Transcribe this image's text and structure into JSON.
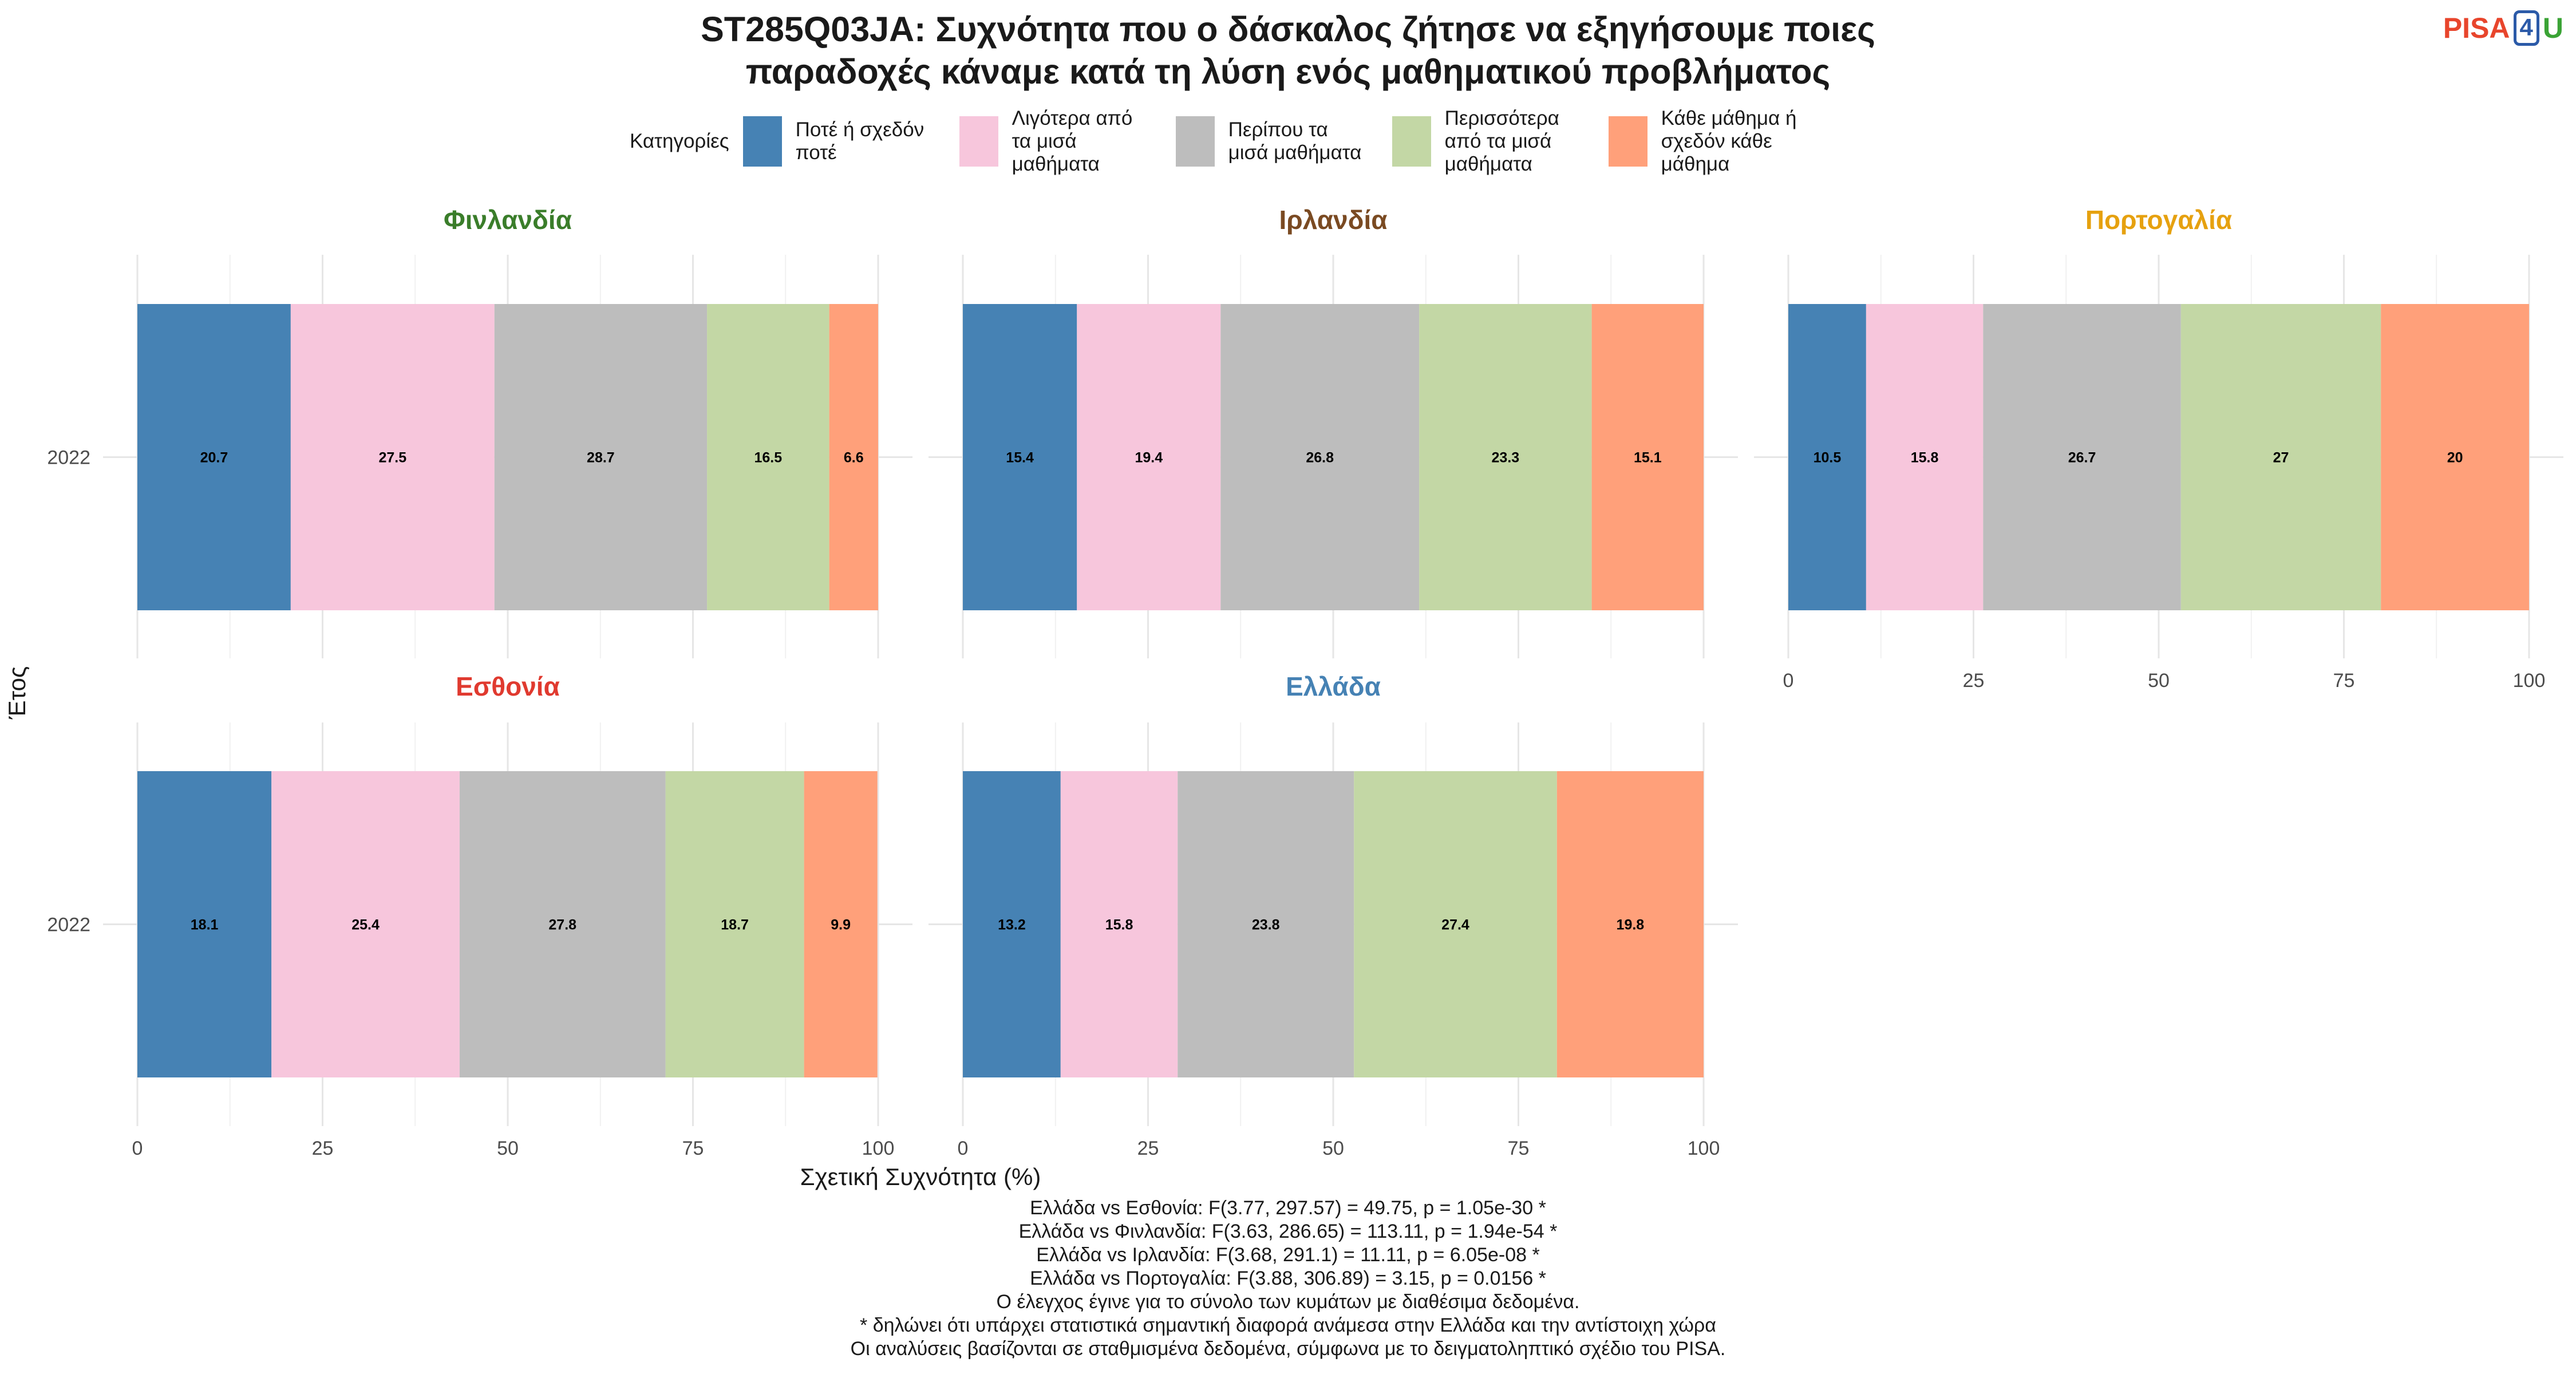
{
  "title_lines": [
    "ST285Q03JA: Συχνότητα που ο δάσκαλος ζήτησε να εξηγήσουμε ποιες",
    "παραδοχές κάναμε κατά τη λύση ενός μαθηματικού προβλήματος"
  ],
  "logo": {
    "part1": "PISA",
    "part2": "4",
    "part3": "U"
  },
  "legend": {
    "title": "Κατηγορίες",
    "items": [
      {
        "label": "Ποτέ ή σχεδόν ποτέ",
        "color": "#4682b4"
      },
      {
        "label": "Λιγότερα από τα μισά μαθήματα",
        "color": "#f7c6dc"
      },
      {
        "label": "Περίπου τα μισά μαθήματα",
        "color": "#bdbdbd"
      },
      {
        "label": "Περισσότερα από τα μισά μαθήματα",
        "color": "#c3d7a5"
      },
      {
        "label": "Κάθε μάθημα ή σχεδόν κάθε μάθημα",
        "color": "#ffa07a"
      }
    ]
  },
  "chart_data": {
    "type": "bar",
    "orientation": "horizontal-stacked",
    "xlabel": "Σχετική Συχνότητα (%)",
    "ylabel": "Έτος",
    "xlim": [
      0,
      100
    ],
    "xticks": [
      0,
      25,
      50,
      75,
      100
    ],
    "categories": [
      "2022"
    ],
    "series_names": [
      "Ποτέ ή σχεδόν ποτέ",
      "Λιγότερα από τα μισά μαθήματα",
      "Περίπου τα μισά μαθήματα",
      "Περισσότερα από τα μισά μαθήματα",
      "Κάθε μάθημα ή σχεδόν κάθε μάθημα"
    ],
    "panels": [
      {
        "country": "Φινλανδία",
        "title_color": "#3a7d2a",
        "year": "2022",
        "values": [
          20.7,
          27.5,
          28.7,
          16.5,
          6.6
        ]
      },
      {
        "country": "Ιρλανδία",
        "title_color": "#7a4a22",
        "year": "2022",
        "values": [
          15.4,
          19.4,
          26.8,
          23.3,
          15.1
        ]
      },
      {
        "country": "Πορτογαλία",
        "title_color": "#e6a10f",
        "year": "2022",
        "values": [
          10.5,
          15.8,
          26.7,
          27,
          20
        ]
      },
      {
        "country": "Εσθονία",
        "title_color": "#e03a2f",
        "year": "2022",
        "values": [
          18.1,
          25.4,
          27.8,
          18.7,
          9.9
        ]
      },
      {
        "country": "Ελλάδα",
        "title_color": "#4682b4",
        "year": "2022",
        "values": [
          13.2,
          15.8,
          23.8,
          27.4,
          19.8
        ]
      }
    ]
  },
  "footer_lines": [
    "Ελλάδα vs Εσθονία: F(3.77, 297.57) = 49.75, p = 1.05e-30 *",
    "Ελλάδα vs Φινλανδία: F(3.63, 286.65) = 113.11, p = 1.94e-54 *",
    "Ελλάδα vs Ιρλανδία: F(3.68, 291.1) = 11.11, p = 6.05e-08 *",
    "Ελλάδα vs Πορτογαλία: F(3.88, 306.89) = 3.15, p = 0.0156 *",
    "Ο έλεγχος έγινε για το σύνολο των κυμάτων με διαθέσιμα δεδομένα.",
    "* δηλώνει ότι υπάρχει στατιστικά σημαντική διαφορά ανάμεσα στην Ελλάδα και την αντίστοιχη χώρα",
    "Οι αναλύσεις βασίζονται σε σταθμισμένα δεδομένα, σύμφωνα με το δειγματοληπτικό σχέδιο του PISA."
  ]
}
